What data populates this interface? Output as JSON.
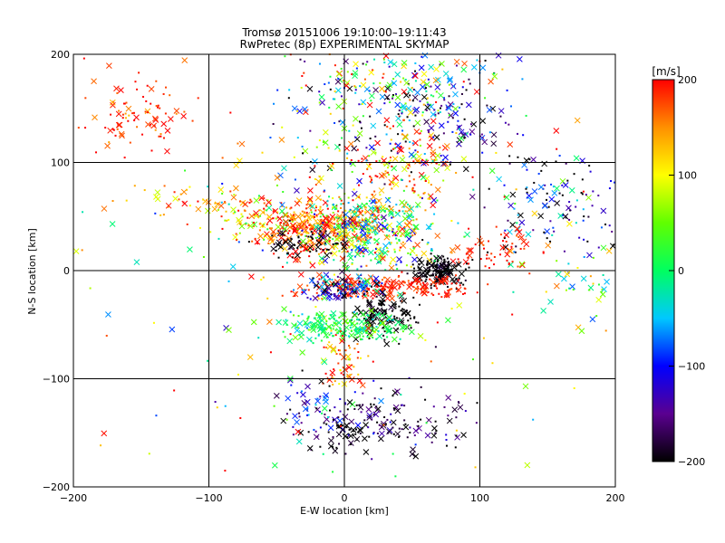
{
  "chart_data": {
    "type": "scatter",
    "title": "Tromsø 20151006 19:10:00–19:11:43",
    "subtitle": "RwPretec (8p) EXPERIMENTAL SKYMAP",
    "xlabel": "E-W location [km]",
    "ylabel": "N-S location [km]",
    "xlim": [
      -200,
      200
    ],
    "ylim": [
      -200,
      200
    ],
    "xticks": [
      -200,
      -100,
      0,
      100,
      200
    ],
    "yticks": [
      -200,
      -100,
      0,
      100,
      200
    ],
    "xtick_labels": [
      "−200",
      "−100",
      "0",
      "100",
      "200"
    ],
    "ytick_labels": [
      "−200",
      "−100",
      "0",
      "100",
      "200"
    ],
    "grid": true,
    "colorbar": {
      "label": "[m/s]",
      "range": [
        -200,
        200
      ],
      "ticks": [
        200,
        100,
        0,
        -100,
        -200
      ],
      "tick_labels": [
        "200",
        "100",
        "0",
        "−100",
        "−200"
      ],
      "colormap": [
        "#000000",
        "#5a0090",
        "#0000ff",
        "#00c8ff",
        "#00ff60",
        "#60ff00",
        "#ffff00",
        "#ff9000",
        "#ff0000"
      ]
    },
    "markers": [
      "x (large)",
      "dot (small)"
    ],
    "clusters": [
      {
        "x": -150,
        "y": 145,
        "sx": 20,
        "sy": 18,
        "n": 90,
        "v": 185,
        "vs": 25
      },
      {
        "x": -110,
        "y": 65,
        "sx": 25,
        "sy": 8,
        "n": 45,
        "v": 150,
        "vs": 40
      },
      {
        "x": -60,
        "y": 50,
        "sx": 20,
        "sy": 10,
        "n": 70,
        "v": 110,
        "vs": 70
      },
      {
        "x": -20,
        "y": 40,
        "sx": 25,
        "sy": 12,
        "n": 320,
        "v": 175,
        "vs": 35
      },
      {
        "x": 20,
        "y": 40,
        "sx": 25,
        "sy": 20,
        "n": 400,
        "v": 20,
        "vs": 90
      },
      {
        "x": -30,
        "y": 25,
        "sx": 15,
        "sy": 8,
        "n": 60,
        "v": -200,
        "vs": 20
      },
      {
        "x": 40,
        "y": 95,
        "sx": 25,
        "sy": 25,
        "n": 140,
        "v": 160,
        "vs": 60
      },
      {
        "x": 20,
        "y": 150,
        "sx": 35,
        "sy": 30,
        "n": 200,
        "v": 0,
        "vs": 150
      },
      {
        "x": 80,
        "y": 150,
        "sx": 25,
        "sy": 25,
        "n": 120,
        "v": -150,
        "vs": 70
      },
      {
        "x": 40,
        "y": 180,
        "sx": 40,
        "sy": 15,
        "n": 70,
        "v": 50,
        "vs": 120
      },
      {
        "x": 160,
        "y": 60,
        "sx": 30,
        "sy": 25,
        "n": 140,
        "v": -140,
        "vs": 90
      },
      {
        "x": 110,
        "y": 20,
        "sx": 20,
        "sy": 10,
        "n": 60,
        "v": 190,
        "vs": 15
      },
      {
        "x": 70,
        "y": 0,
        "sx": 10,
        "sy": 7,
        "n": 140,
        "v": -200,
        "vs": 8
      },
      {
        "x": 30,
        "y": -15,
        "sx": 30,
        "sy": 5,
        "n": 200,
        "v": 190,
        "vs": 15
      },
      {
        "x": 0,
        "y": -15,
        "sx": 15,
        "sy": 6,
        "n": 120,
        "v": -120,
        "vs": 60
      },
      {
        "x": 30,
        "y": -40,
        "sx": 12,
        "sy": 10,
        "n": 120,
        "v": -200,
        "vs": 8
      },
      {
        "x": 0,
        "y": -52,
        "sx": 25,
        "sy": 7,
        "n": 220,
        "v": 10,
        "vs": 30
      },
      {
        "x": 0,
        "y": -85,
        "sx": 8,
        "sy": 12,
        "n": 60,
        "v": 160,
        "vs": 40
      },
      {
        "x": -20,
        "y": -125,
        "sx": 15,
        "sy": 15,
        "n": 60,
        "v": -120,
        "vs": 60
      },
      {
        "x": 30,
        "y": -140,
        "sx": 30,
        "sy": 15,
        "n": 140,
        "v": -180,
        "vs": 40
      },
      {
        "x": 0,
        "y": -150,
        "sx": 10,
        "sy": 8,
        "n": 30,
        "v": -200,
        "vs": 10
      },
      {
        "x": 180,
        "y": -10,
        "sx": 15,
        "sy": 20,
        "n": 40,
        "v": 30,
        "vs": 60
      },
      {
        "x": 0,
        "y": 0,
        "sx": 110,
        "sy": 110,
        "n": 220,
        "v": 100,
        "vs": 120
      }
    ]
  }
}
